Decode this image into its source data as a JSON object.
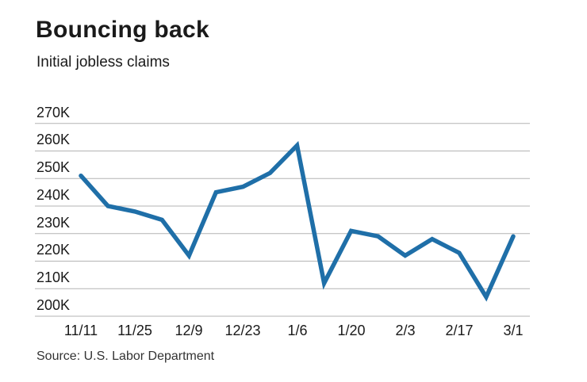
{
  "title": "Bouncing back",
  "subtitle": "Initial jobless claims",
  "source": "Source: U.S. Labor Department",
  "colors": {
    "line": "#1f6fa8",
    "gridline": "#b3b3b3",
    "text": "#1a1a1a",
    "background": "#ffffff"
  },
  "chart_data": {
    "type": "line",
    "title": "Bouncing back",
    "subtitle": "Initial jobless claims",
    "source": "Source: U.S. Labor Department",
    "unit": "thousands of claims",
    "x_tick_labels": [
      "11/11",
      "11/25",
      "12/9",
      "12/23",
      "1/6",
      "1/20",
      "2/3",
      "2/17",
      "3/1"
    ],
    "points_per_tick": 2,
    "values_thousands": [
      251,
      240,
      238,
      235,
      222,
      245,
      247,
      252,
      262,
      212,
      231,
      229,
      222,
      228,
      223,
      207,
      229
    ],
    "y_tick_labels": [
      "270K",
      "260K",
      "250K",
      "240K",
      "230K",
      "220K",
      "210K",
      "200K"
    ],
    "y_tick_values_thousands": [
      270,
      260,
      250,
      240,
      230,
      220,
      210,
      200
    ],
    "ylim_thousands": [
      200,
      270
    ],
    "grid": "horizontal",
    "legend": "none"
  }
}
